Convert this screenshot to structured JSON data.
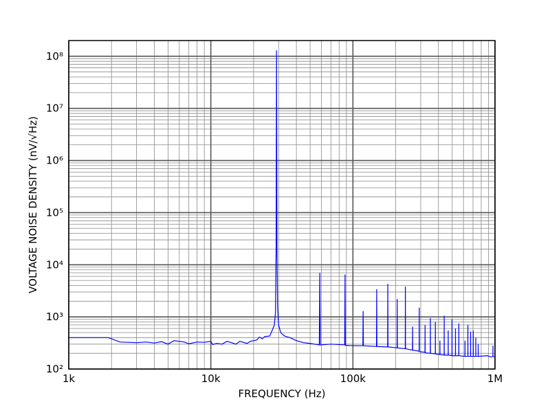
{
  "chart_data": {
    "type": "line",
    "xlabel": "FREQUENCY (Hz)",
    "ylabel": "VOLTAGE NOISE DENSITY (nV/√Hz)",
    "xscale": "log",
    "yscale": "log",
    "grid": true,
    "color": "#0000ff",
    "xlim": [
      1000,
      1000000
    ],
    "ylim": [
      100,
      200000000
    ],
    "xticks": [
      {
        "value": 1000,
        "label": "1k"
      },
      {
        "value": 10000,
        "label": "10k"
      },
      {
        "value": 100000,
        "label": "100k"
      },
      {
        "value": 1000000,
        "label": "1M"
      }
    ],
    "yticks": [
      {
        "value": 100,
        "label": "10²"
      },
      {
        "value": 1000,
        "label": "10³"
      },
      {
        "value": 10000,
        "label": "10⁴"
      },
      {
        "value": 100000,
        "label": "10⁵"
      },
      {
        "value": 1000000,
        "label": "10⁶"
      },
      {
        "value": 10000000,
        "label": "10⁷"
      },
      {
        "value": 100000000,
        "label": "10⁸"
      }
    ],
    "xminorticks": [
      2000,
      3000,
      4000,
      5000,
      6000,
      7000,
      8000,
      9000,
      20000,
      30000,
      40000,
      50000,
      60000,
      70000,
      80000,
      90000,
      200000,
      300000,
      400000,
      500000,
      600000,
      700000,
      800000,
      900000
    ],
    "yminorticks": [
      200,
      300,
      400,
      500,
      600,
      700,
      800,
      900,
      2000,
      3000,
      4000,
      5000,
      6000,
      7000,
      8000,
      9000,
      20000,
      30000,
      40000,
      50000,
      60000,
      70000,
      80000,
      90000,
      200000,
      300000,
      400000,
      500000,
      600000,
      700000,
      800000,
      900000,
      2000000,
      3000000,
      4000000,
      5000000,
      6000000,
      7000000,
      8000000,
      9000000,
      20000000,
      30000000,
      40000000,
      50000000,
      60000000,
      70000000,
      80000000,
      90000000,
      200000000
    ],
    "x": [
      1000,
      1900,
      2300,
      3000,
      3500,
      4000,
      4500,
      5000,
      5500,
      6500,
      7000,
      8000,
      9000,
      10000,
      10300,
      11000,
      12000,
      13000,
      14000,
      15000,
      16000,
      18000,
      19000,
      21000,
      22000,
      23000,
      24000,
      26000,
      27000,
      28000,
      28500,
      28800,
      29000,
      29200,
      29500,
      30000,
      31000,
      33000,
      36000,
      40000,
      45000,
      50000,
      58000,
      58500,
      59000,
      70000,
      87500,
      88000,
      88500,
      100000,
      117500,
      118000,
      118500,
      146500,
      147000,
      147500,
      175500,
      176000,
      176500,
      204500,
      205000,
      205500,
      233500,
      234000,
      234500,
      262500,
      263000,
      263500,
      292500,
      293000,
      293500,
      321500,
      322000,
      322500,
      350500,
      351000,
      351500,
      380000,
      380500,
      381000,
      409000,
      409500,
      410000,
      438500,
      439000,
      439500,
      468000,
      468500,
      469000,
      497500,
      498000,
      498500,
      526500,
      527000,
      527500,
      556000,
      556500,
      557000,
      614500,
      615000,
      615500,
      644000,
      644500,
      645000,
      673000,
      673500,
      674000,
      702500,
      703000,
      703500,
      732000,
      732500,
      733000,
      761000,
      761500,
      762000,
      880000,
      940000,
      967000,
      967500,
      968000,
      1000000
    ],
    "values": [
      400,
      400,
      330,
      320,
      330,
      315,
      335,
      300,
      350,
      330,
      305,
      330,
      325,
      340,
      295,
      310,
      300,
      340,
      320,
      300,
      340,
      310,
      340,
      360,
      410,
      380,
      420,
      430,
      550,
      700,
      1200,
      20000,
      130000000,
      20000,
      1500,
      700,
      500,
      430,
      400,
      350,
      320,
      310,
      290,
      7000,
      290,
      300,
      290,
      6500,
      285,
      280,
      280,
      1300,
      280,
      270,
      3400,
      270,
      265,
      4300,
      265,
      255,
      2200,
      255,
      245,
      3800,
      245,
      230,
      650,
      230,
      220,
      1500,
      215,
      210,
      700,
      205,
      200,
      950,
      200,
      195,
      800,
      195,
      190,
      350,
      190,
      185,
      1050,
      185,
      185,
      550,
      185,
      180,
      900,
      180,
      180,
      600,
      180,
      180,
      750,
      180,
      175,
      350,
      175,
      175,
      700,
      175,
      175,
      520,
      175,
      175,
      550,
      175,
      175,
      400,
      175,
      175,
      300,
      175,
      180,
      170,
      175,
      280,
      175,
      170
    ]
  }
}
